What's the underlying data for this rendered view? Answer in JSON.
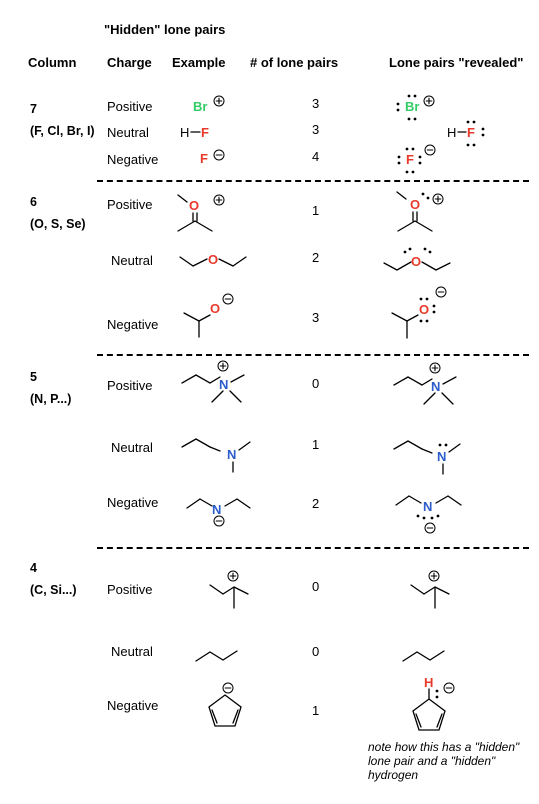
{
  "title": "\"Hidden\" lone pairs",
  "headers": {
    "column": "Column",
    "charge": "Charge",
    "example": "Example",
    "count": "# of lone pairs",
    "revealed": "Lone pairs \"revealed\""
  },
  "groups": [
    {
      "number": "7",
      "elements": "(F, Cl, Br, I)",
      "rows": [
        {
          "charge": "Positive",
          "count": "3"
        },
        {
          "charge": "Neutral",
          "count": "3"
        },
        {
          "charge": "Negative",
          "count": "4"
        }
      ]
    },
    {
      "number": "6",
      "elements": "(O, S, Se)",
      "rows": [
        {
          "charge": "Positive",
          "count": "1"
        },
        {
          "charge": "Neutral",
          "count": "2"
        },
        {
          "charge": "Negative",
          "count": "3"
        }
      ]
    },
    {
      "number": "5",
      "elements": "(N, P...)",
      "rows": [
        {
          "charge": "Positive",
          "count": "0"
        },
        {
          "charge": "Neutral",
          "count": "1"
        },
        {
          "charge": "Negative",
          "count": "2"
        }
      ]
    },
    {
      "number": "4",
      "elements": "(C, Si...)",
      "rows": [
        {
          "charge": "Positive",
          "count": "0"
        },
        {
          "charge": "Neutral",
          "count": "0"
        },
        {
          "charge": "Negative",
          "count": "1"
        }
      ]
    }
  ],
  "atoms": {
    "br": "Br",
    "f": "F",
    "h": "H",
    "o": "O",
    "n": "N"
  },
  "charges": {
    "plus": "+",
    "minus": "−"
  },
  "note": "note how this has a \"hidden\" lone pair and a \"hidden\" hydrogen",
  "colors": {
    "bromine": "#33cc66",
    "fluorine": "#e8392a",
    "oxygen": "#e8392a",
    "nitrogen": "#2b5ccc",
    "hydrogen": "#e8392a"
  }
}
